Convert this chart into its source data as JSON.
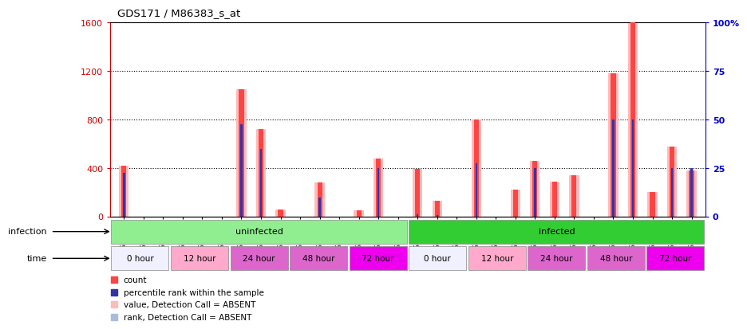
{
  "title": "GDS171 / M86383_s_at",
  "samples": [
    "GSM2591",
    "GSM2607",
    "GSM2617",
    "GSM2597",
    "GSM2609",
    "GSM2619",
    "GSM2601",
    "GSM2611",
    "GSM2621",
    "GSM2603",
    "GSM2613",
    "GSM2623",
    "GSM2605",
    "GSM2615",
    "GSM2625",
    "GSM2595",
    "GSM2608",
    "GSM2618",
    "GSM2599",
    "GSM2610",
    "GSM2620",
    "GSM2602",
    "GSM2612",
    "GSM2622",
    "GSM2604",
    "GSM2614",
    "GSM2624",
    "GSM2606",
    "GSM2616",
    "GSM2626"
  ],
  "pink_values": [
    420,
    0,
    0,
    0,
    0,
    0,
    1050,
    720,
    60,
    0,
    280,
    0,
    50,
    480,
    0,
    390,
    130,
    0,
    800,
    0,
    220,
    460,
    290,
    340,
    0,
    1180,
    1600,
    200,
    580,
    380
  ],
  "red_values": [
    420,
    0,
    0,
    0,
    0,
    0,
    1050,
    720,
    60,
    0,
    280,
    0,
    50,
    480,
    0,
    390,
    130,
    0,
    800,
    0,
    220,
    460,
    290,
    340,
    0,
    1180,
    1600,
    200,
    580,
    380
  ],
  "ltblue_rank": [
    360,
    0,
    0,
    0,
    0,
    0,
    760,
    560,
    0,
    0,
    160,
    0,
    0,
    400,
    0,
    20,
    14,
    0,
    440,
    0,
    0,
    400,
    0,
    0,
    0,
    800,
    800,
    0,
    400,
    400
  ],
  "dkblue_rank": [
    360,
    0,
    0,
    0,
    0,
    0,
    760,
    560,
    0,
    0,
    160,
    0,
    0,
    400,
    0,
    20,
    14,
    0,
    440,
    0,
    0,
    400,
    0,
    0,
    0,
    800,
    800,
    0,
    400,
    400
  ],
  "ylim_left": [
    0,
    1600
  ],
  "ylim_right": [
    0,
    100
  ],
  "yticks_left": [
    0,
    400,
    800,
    1200,
    1600
  ],
  "yticks_right": [
    0,
    25,
    50,
    75,
    100
  ],
  "ytick_right_labels": [
    "0",
    "25",
    "50",
    "75",
    "100%"
  ],
  "infection_groups": [
    {
      "label": "uninfected",
      "start": 0,
      "end": 15,
      "color": "#90EE90"
    },
    {
      "label": "infected",
      "start": 15,
      "end": 30,
      "color": "#32CD32"
    }
  ],
  "time_groups": [
    {
      "label": "0 hour",
      "start": 0,
      "end": 3,
      "color": "#F0F0FF"
    },
    {
      "label": "12 hour",
      "start": 3,
      "end": 6,
      "color": "#FFAACC"
    },
    {
      "label": "24 hour",
      "start": 6,
      "end": 9,
      "color": "#DD66CC"
    },
    {
      "label": "48 hour",
      "start": 9,
      "end": 12,
      "color": "#DD66CC"
    },
    {
      "label": "72 hour",
      "start": 12,
      "end": 15,
      "color": "#EE00EE"
    },
    {
      "label": "0 hour",
      "start": 15,
      "end": 18,
      "color": "#F0F0FF"
    },
    {
      "label": "12 hour",
      "start": 18,
      "end": 21,
      "color": "#FFAACC"
    },
    {
      "label": "24 hour",
      "start": 21,
      "end": 24,
      "color": "#DD66CC"
    },
    {
      "label": "48 hour",
      "start": 24,
      "end": 27,
      "color": "#DD66CC"
    },
    {
      "label": "72 hour",
      "start": 27,
      "end": 30,
      "color": "#EE00EE"
    }
  ],
  "count_color": "#FF4444",
  "rank_color": "#3333AA",
  "absent_count_color": "#FFBBBB",
  "absent_rank_color": "#AABBDD",
  "bg_color": "#FFFFFF",
  "left_axis_color": "#CC0000",
  "right_axis_color": "#0000CC"
}
